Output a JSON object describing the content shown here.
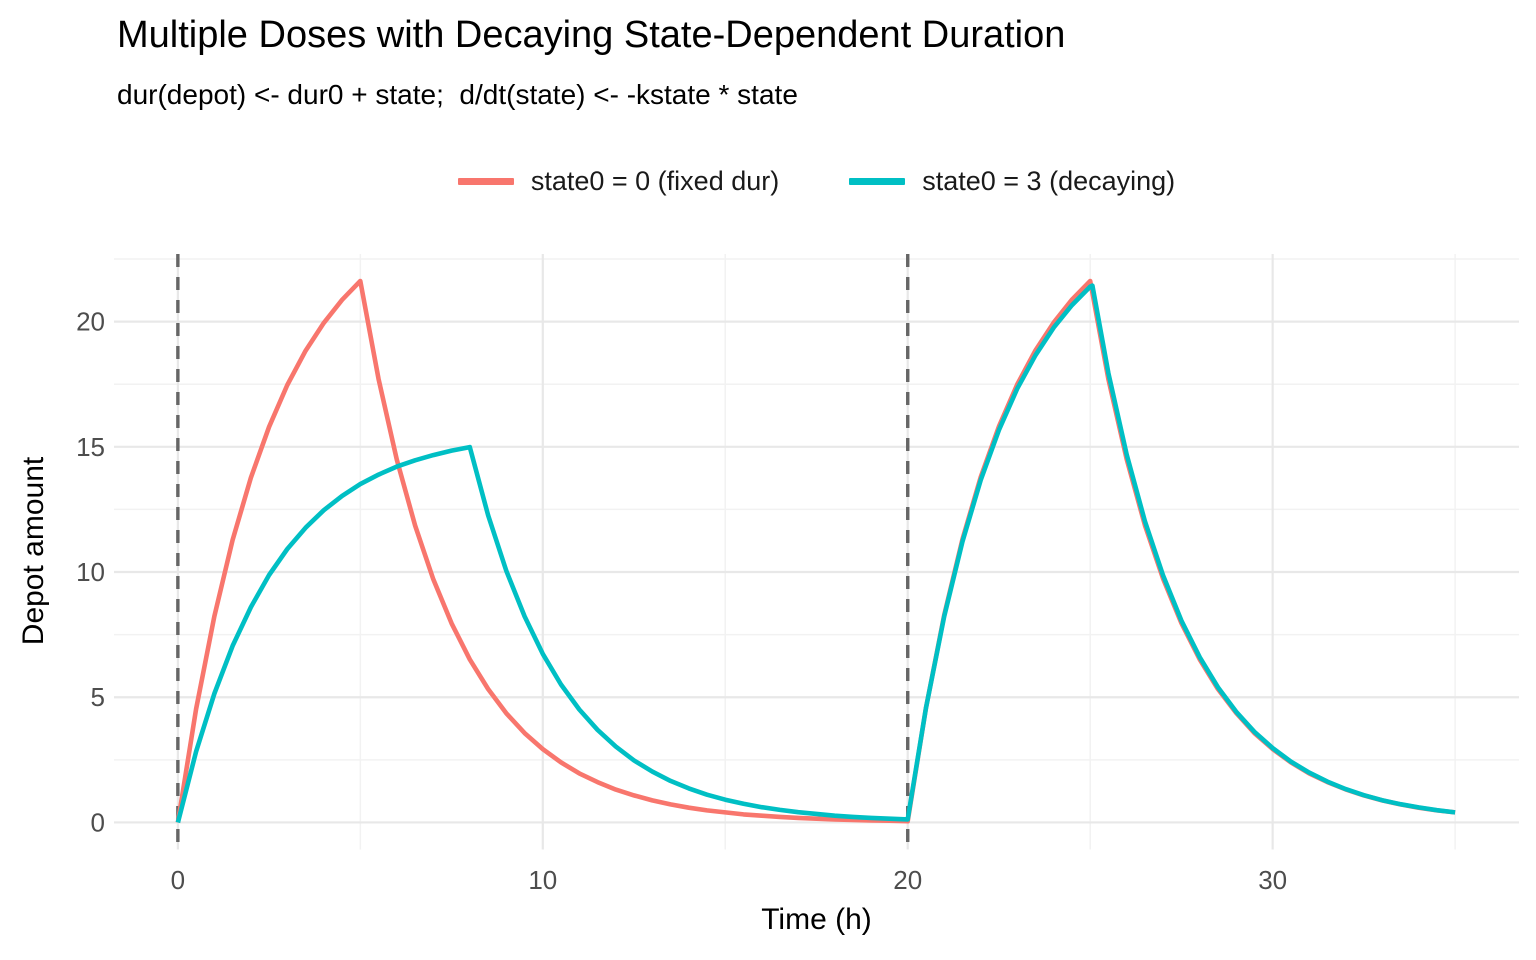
{
  "chart_data": {
    "type": "line",
    "title": "Multiple Doses with Decaying State-Dependent Duration",
    "subtitle": "dur(depot) <- dur0 + state;  d/dt(state) <- -kstate * state",
    "xlabel": "Time (h)",
    "ylabel": "Depot amount",
    "xlim": [
      -1.75,
      36.75
    ],
    "ylim": [
      -1.08,
      22.7
    ],
    "x_ticks": [
      0,
      10,
      20,
      30
    ],
    "x_minor_ticks": [
      5,
      15,
      25,
      35
    ],
    "y_ticks": [
      0,
      5,
      10,
      15,
      20
    ],
    "y_minor_ticks": [
      2.5,
      7.5,
      12.5,
      17.5,
      22.5
    ],
    "grid": true,
    "legend_position": "top",
    "dose_vlines": {
      "x": [
        0,
        20
      ],
      "style": "dashed",
      "color": "#666666"
    },
    "series": [
      {
        "name": "state0 = 0 (fixed dur)",
        "color": "#F8766D",
        "points": [
          [
            0,
            0
          ],
          [
            0.5,
            4.53
          ],
          [
            1,
            8.24
          ],
          [
            1.5,
            11.28
          ],
          [
            2,
            13.77
          ],
          [
            2.5,
            15.8
          ],
          [
            3,
            17.47
          ],
          [
            3.5,
            18.84
          ],
          [
            4,
            19.95
          ],
          [
            4.5,
            20.87
          ],
          [
            5,
            21.62
          ],
          [
            5.5,
            17.7
          ],
          [
            6,
            14.49
          ],
          [
            6.5,
            11.86
          ],
          [
            7,
            9.71
          ],
          [
            7.5,
            7.95
          ],
          [
            8,
            6.51
          ],
          [
            8.5,
            5.33
          ],
          [
            9,
            4.36
          ],
          [
            9.5,
            3.57
          ],
          [
            10,
            2.93
          ],
          [
            10.5,
            2.4
          ],
          [
            11,
            1.96
          ],
          [
            11.5,
            1.61
          ],
          [
            12,
            1.31
          ],
          [
            12.5,
            1.08
          ],
          [
            13,
            0.88
          ],
          [
            13.5,
            0.72
          ],
          [
            14,
            0.59
          ],
          [
            14.5,
            0.48
          ],
          [
            15,
            0.4
          ],
          [
            15.5,
            0.32
          ],
          [
            16,
            0.27
          ],
          [
            16.5,
            0.22
          ],
          [
            17,
            0.18
          ],
          [
            17.5,
            0.15
          ],
          [
            18,
            0.12
          ],
          [
            18.5,
            0.1
          ],
          [
            19,
            0.08
          ],
          [
            19.5,
            0.07
          ],
          [
            20,
            0.05
          ],
          [
            20.5,
            4.58
          ],
          [
            21,
            8.28
          ],
          [
            21.5,
            11.31
          ],
          [
            22,
            13.79
          ],
          [
            22.5,
            15.82
          ],
          [
            23,
            17.49
          ],
          [
            23.5,
            18.85
          ],
          [
            24,
            19.96
          ],
          [
            24.5,
            20.88
          ],
          [
            25,
            21.62
          ],
          [
            25.5,
            17.7
          ],
          [
            26,
            14.5
          ],
          [
            26.5,
            11.87
          ],
          [
            27,
            9.72
          ],
          [
            27.5,
            7.96
          ],
          [
            28,
            6.51
          ],
          [
            28.5,
            5.33
          ],
          [
            29,
            4.37
          ],
          [
            29.5,
            3.57
          ],
          [
            30,
            2.93
          ],
          [
            30.5,
            2.4
          ],
          [
            31,
            1.96
          ],
          [
            31.5,
            1.61
          ],
          [
            32,
            1.32
          ],
          [
            32.5,
            1.08
          ],
          [
            33,
            0.88
          ],
          [
            33.5,
            0.72
          ],
          [
            34,
            0.59
          ],
          [
            34.5,
            0.48
          ],
          [
            35,
            0.4
          ]
        ]
      },
      {
        "name": "state0 = 3 (decaying)",
        "color": "#00BFC4",
        "points": [
          [
            0,
            0
          ],
          [
            0.5,
            2.83
          ],
          [
            1,
            5.15
          ],
          [
            1.5,
            7.05
          ],
          [
            2,
            8.6
          ],
          [
            2.5,
            9.88
          ],
          [
            3,
            10.92
          ],
          [
            3.5,
            11.77
          ],
          [
            4,
            12.47
          ],
          [
            4.5,
            13.04
          ],
          [
            5,
            13.51
          ],
          [
            5.5,
            13.89
          ],
          [
            6,
            14.21
          ],
          [
            6.5,
            14.46
          ],
          [
            7,
            14.67
          ],
          [
            7.5,
            14.85
          ],
          [
            8,
            14.99
          ],
          [
            8.5,
            12.27
          ],
          [
            9,
            10.05
          ],
          [
            9.5,
            8.23
          ],
          [
            10,
            6.73
          ],
          [
            10.5,
            5.51
          ],
          [
            11,
            4.51
          ],
          [
            11.5,
            3.7
          ],
          [
            12,
            3.03
          ],
          [
            12.5,
            2.48
          ],
          [
            13,
            2.03
          ],
          [
            13.5,
            1.66
          ],
          [
            14,
            1.36
          ],
          [
            14.5,
            1.11
          ],
          [
            15,
            0.91
          ],
          [
            15.5,
            0.75
          ],
          [
            16,
            0.61
          ],
          [
            16.5,
            0.5
          ],
          [
            17,
            0.41
          ],
          [
            17.5,
            0.34
          ],
          [
            18,
            0.27
          ],
          [
            18.5,
            0.22
          ],
          [
            19,
            0.18
          ],
          [
            19.5,
            0.15
          ],
          [
            20,
            0.12
          ],
          [
            20.5,
            4.58
          ],
          [
            21,
            8.23
          ],
          [
            21.5,
            11.22
          ],
          [
            22,
            13.67
          ],
          [
            22.5,
            15.68
          ],
          [
            23,
            17.32
          ],
          [
            23.5,
            18.66
          ],
          [
            24,
            19.76
          ],
          [
            24.5,
            20.66
          ],
          [
            25,
            21.4
          ],
          [
            25.06,
            21.44
          ],
          [
            25.5,
            17.94
          ],
          [
            26,
            14.69
          ],
          [
            26.5,
            12.03
          ],
          [
            27,
            9.85
          ],
          [
            27.5,
            8.06
          ],
          [
            28,
            6.6
          ],
          [
            28.5,
            5.4
          ],
          [
            29,
            4.42
          ],
          [
            29.5,
            3.62
          ],
          [
            30,
            2.97
          ],
          [
            30.5,
            2.43
          ],
          [
            31,
            1.99
          ],
          [
            31.5,
            1.63
          ],
          [
            32,
            1.33
          ],
          [
            32.5,
            1.09
          ],
          [
            33,
            0.89
          ],
          [
            33.5,
            0.73
          ],
          [
            34,
            0.6
          ],
          [
            34.5,
            0.49
          ],
          [
            35,
            0.4
          ]
        ]
      }
    ],
    "style": {
      "grid_major_color": "#E8E8E8",
      "grid_minor_color": "#F2F2F2",
      "tick_label_color": "#4D4D4D",
      "line_width": 4.6
    }
  }
}
